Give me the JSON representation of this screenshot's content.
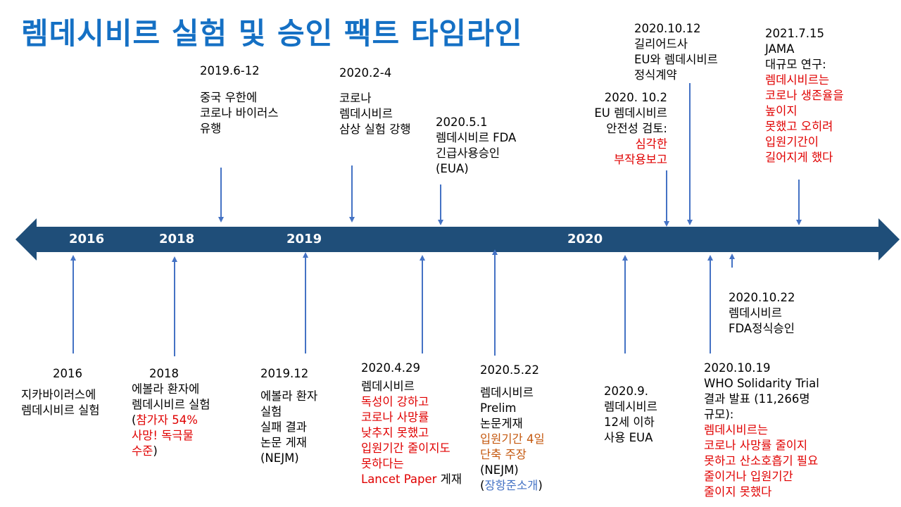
{
  "title": "렘데시비르 실험 및 승인 팩트 타임라인",
  "colors": {
    "axis": "#1f4e79",
    "arrow": "#4472c4",
    "title": "#1570c4",
    "k": "#000000",
    "r": "#e00000",
    "o": "#c55a11",
    "b": "#4472c4"
  },
  "axis_years": [
    "2016",
    "2018",
    "2019",
    "2020"
  ],
  "events_above": [
    {
      "date": "2019.6-12",
      "lines": [
        [
          [
            "중국 우한에",
            "k"
          ]
        ],
        [
          [
            "코로나 바이러스",
            "k"
          ]
        ],
        [
          [
            "유행",
            "k"
          ]
        ]
      ]
    },
    {
      "date": "2020.2-4",
      "lines": [
        [
          [
            "코로나",
            "k"
          ]
        ],
        [
          [
            "렘데시비르",
            "k"
          ]
        ],
        [
          [
            "삼상 실험 강행",
            "k"
          ]
        ]
      ]
    },
    {
      "date": "2020.5.1",
      "lines": [
        [
          [
            "렘데시비르 FDA",
            "k"
          ]
        ],
        [
          [
            "긴급사용승인",
            "k"
          ]
        ],
        [
          [
            "(EUA)",
            "k"
          ]
        ]
      ]
    },
    {
      "date": "2020. 10.2",
      "lines": [
        [
          [
            "EU 렘데시비르",
            "k"
          ]
        ],
        [
          [
            "안전성 검토:",
            "k"
          ]
        ],
        [
          [
            "심각한",
            "r"
          ]
        ],
        [
          [
            "부작용보고",
            "r"
          ]
        ]
      ]
    },
    {
      "date": "2020.10.12",
      "lines": [
        [
          [
            "길리어드사",
            "k"
          ]
        ],
        [
          [
            "EU와 렘데시비르",
            "k"
          ]
        ],
        [
          [
            "정식계약",
            "k"
          ]
        ]
      ]
    },
    {
      "date": "2021.7.15",
      "lines": [
        [
          [
            "JAMA",
            "k"
          ]
        ],
        [
          [
            "대규모 연구:",
            "k"
          ]
        ],
        [
          [
            "렘데시비르는",
            "r"
          ]
        ],
        [
          [
            "코로나 생존율을",
            "r"
          ]
        ],
        [
          [
            "높이지",
            "r"
          ]
        ],
        [
          [
            "못했고 오히려",
            "r"
          ]
        ],
        [
          [
            "입원기간이",
            "r"
          ]
        ],
        [
          [
            "길어지게 했다",
            "r"
          ]
        ]
      ]
    }
  ],
  "events_below": [
    {
      "date": "2016",
      "lines": [
        [
          [
            "지카바이러스에",
            "k"
          ]
        ],
        [
          [
            "렘데시비르 실험",
            "k"
          ]
        ]
      ]
    },
    {
      "date": "2018",
      "lines": [
        [
          [
            "에볼라 환자에",
            "k"
          ]
        ],
        [
          [
            "렘데시비르 실험",
            "k"
          ]
        ],
        [
          [
            "(",
            "k"
          ],
          [
            "참가자 54%",
            "r"
          ]
        ],
        [
          [
            "사망! 독극물",
            "r"
          ]
        ],
        [
          [
            "수준",
            "r"
          ],
          [
            ")",
            "k"
          ]
        ]
      ]
    },
    {
      "date": "2019.12",
      "lines": [
        [
          [
            "에볼라 환자",
            "k"
          ]
        ],
        [
          [
            "실험",
            "k"
          ]
        ],
        [
          [
            "실패 결과",
            "k"
          ]
        ],
        [
          [
            "논문 게재",
            "k"
          ]
        ],
        [
          [
            "(NEJM)",
            "k"
          ]
        ]
      ]
    },
    {
      "date": "2020.4.29",
      "lines": [
        [
          [
            "렘데시비르",
            "k"
          ]
        ],
        [
          [
            "독성이 강하고",
            "r"
          ]
        ],
        [
          [
            "코로나 사망률",
            "r"
          ]
        ],
        [
          [
            "낮추지 못했고",
            "r"
          ]
        ],
        [
          [
            "입원기간 줄이지도",
            "r"
          ]
        ],
        [
          [
            "못하다는",
            "r"
          ]
        ],
        [
          [
            "Lancet Paper",
            "r"
          ],
          [
            " 게재",
            "k"
          ]
        ]
      ]
    },
    {
      "date": "2020.5.22",
      "lines": [
        [
          [
            "렘데시비르",
            "k"
          ]
        ],
        [
          [
            "Prelim",
            "k"
          ]
        ],
        [
          [
            "논문게재",
            "k"
          ]
        ],
        [
          [
            "입원기간 4일",
            "o"
          ]
        ],
        [
          [
            "단축 주장",
            "o"
          ]
        ],
        [
          [
            "(NEJM)",
            "k"
          ]
        ],
        [
          [
            "(",
            "k"
          ],
          [
            "장항준소개",
            "b"
          ],
          [
            ")",
            "k"
          ]
        ]
      ]
    },
    {
      "date": "2020.9.",
      "lines": [
        [
          [
            "렘데시비르",
            "k"
          ]
        ],
        [
          [
            "12세 이하",
            "k"
          ]
        ],
        [
          [
            "사용 EUA",
            "k"
          ]
        ]
      ]
    },
    {
      "date": "2020.10.19",
      "lines": [
        [
          [
            "WHO Solidarity Trial",
            "k"
          ]
        ],
        [
          [
            "결과 발표 (11,266명",
            "k"
          ]
        ],
        [
          [
            "규모):",
            "k"
          ]
        ],
        [
          [
            "렘데시비르는",
            "r"
          ]
        ],
        [
          [
            "코로나 사망률 줄이지",
            "r"
          ]
        ],
        [
          [
            "못하고 산소호흡기 필요",
            "r"
          ]
        ],
        [
          [
            "줄이거나 입원기간",
            "r"
          ]
        ],
        [
          [
            "줄이지 못했다",
            "r"
          ]
        ]
      ]
    },
    {
      "date": "2020.10.22",
      "lines": [
        [
          [
            "렘데시비르",
            "k"
          ]
        ],
        [
          [
            "FDA정식승인",
            "k"
          ]
        ]
      ]
    }
  ]
}
